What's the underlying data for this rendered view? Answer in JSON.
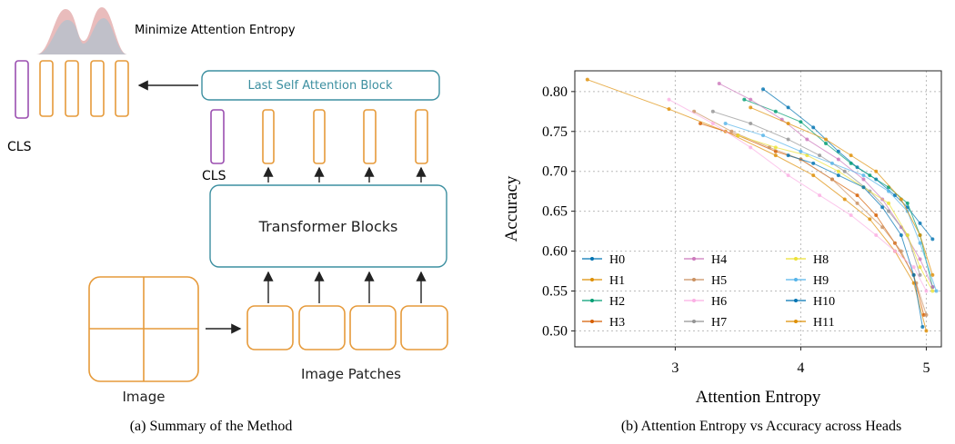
{
  "diagram": {
    "objective": "Minimize Attention Entropy",
    "last_block": "Last Self Attention Block",
    "cls_labels": [
      "CLS",
      "CLS"
    ],
    "transformer": "Transformer Blocks",
    "image": "Image",
    "patches": "Image Patches"
  },
  "captions": [
    "(a) Summary of the Method",
    "(b) Attention Entropy vs Accuracy across Heads"
  ],
  "chart_data": {
    "type": "line",
    "xlabel": "Attention Entropy",
    "ylabel": "Accuracy",
    "xlim": [
      2.2,
      5.12
    ],
    "ylim": [
      0.48,
      0.826
    ],
    "xticks": [
      3,
      4,
      5
    ],
    "yticks": [
      {
        "value": 0.5,
        "label": "0.50"
      },
      {
        "value": 0.55,
        "label": "0.55"
      },
      {
        "value": 0.6,
        "label": "0.60"
      },
      {
        "value": 0.65,
        "label": "0.65"
      },
      {
        "value": 0.7,
        "label": "0.70"
      },
      {
        "value": 0.75,
        "label": "0.75"
      },
      {
        "value": 0.8,
        "label": "0.80"
      }
    ],
    "grid": true,
    "legend": "lower left",
    "series": [
      {
        "name": "H0",
        "color": "#0173b2",
        "x": [
          3.7,
          3.9,
          4.1,
          4.3,
          4.45,
          4.6,
          4.75,
          4.85,
          4.95,
          5.05
        ],
        "values": [
          0.803,
          0.78,
          0.755,
          0.725,
          0.705,
          0.69,
          0.67,
          0.655,
          0.635,
          0.615
        ]
      },
      {
        "name": "H1",
        "color": "#de8f05",
        "x": [
          2.3,
          2.95,
          3.4,
          3.8,
          4.1,
          4.35,
          4.55,
          4.75,
          4.9,
          5.0
        ],
        "values": [
          0.815,
          0.778,
          0.75,
          0.72,
          0.695,
          0.665,
          0.64,
          0.6,
          0.56,
          0.5
        ]
      },
      {
        "name": "H2",
        "color": "#029e73",
        "x": [
          3.55,
          3.8,
          4.0,
          4.2,
          4.4,
          4.55,
          4.7,
          4.85,
          4.95,
          5.05
        ],
        "values": [
          0.79,
          0.775,
          0.762,
          0.735,
          0.71,
          0.695,
          0.68,
          0.66,
          0.62,
          0.555
        ]
      },
      {
        "name": "H3",
        "color": "#d55e00",
        "x": [
          3.2,
          3.5,
          3.8,
          4.0,
          4.25,
          4.45,
          4.6,
          4.75,
          4.9,
          4.98
        ],
        "values": [
          0.76,
          0.745,
          0.725,
          0.715,
          0.69,
          0.67,
          0.645,
          0.61,
          0.57,
          0.52
        ]
      },
      {
        "name": "H4",
        "color": "#cc78bc",
        "x": [
          3.35,
          3.6,
          3.85,
          4.05,
          4.3,
          4.5,
          4.65,
          4.8,
          4.95,
          5.05
        ],
        "values": [
          0.81,
          0.79,
          0.765,
          0.74,
          0.715,
          0.69,
          0.665,
          0.63,
          0.59,
          0.555
        ]
      },
      {
        "name": "H5",
        "color": "#ca9161",
        "x": [
          3.15,
          3.45,
          3.75,
          4.0,
          4.25,
          4.45,
          4.65,
          4.8,
          4.92,
          5.0
        ],
        "values": [
          0.775,
          0.75,
          0.73,
          0.715,
          0.69,
          0.66,
          0.63,
          0.6,
          0.56,
          0.52
        ]
      },
      {
        "name": "H6",
        "color": "#fbafe4",
        "x": [
          2.95,
          3.3,
          3.6,
          3.9,
          4.15,
          4.4,
          4.6,
          4.75,
          4.9,
          5.0
        ],
        "values": [
          0.79,
          0.76,
          0.73,
          0.695,
          0.67,
          0.645,
          0.62,
          0.6,
          0.58,
          0.55
        ]
      },
      {
        "name": "H7",
        "color": "#949494",
        "x": [
          3.3,
          3.6,
          3.9,
          4.15,
          4.35,
          4.55,
          4.7,
          4.85,
          4.95
        ],
        "values": [
          0.775,
          0.76,
          0.74,
          0.72,
          0.7,
          0.675,
          0.65,
          0.62,
          0.57
        ]
      },
      {
        "name": "H8",
        "color": "#ece133",
        "x": [
          3.5,
          3.8,
          4.05,
          4.3,
          4.5,
          4.7,
          4.85,
          4.95,
          5.05
        ],
        "values": [
          0.745,
          0.73,
          0.72,
          0.7,
          0.68,
          0.66,
          0.62,
          0.58,
          0.55
        ]
      },
      {
        "name": "H9",
        "color": "#56b4e9",
        "x": [
          3.4,
          3.7,
          4.0,
          4.25,
          4.5,
          4.7,
          4.85,
          4.95,
          5.08
        ],
        "values": [
          0.76,
          0.745,
          0.725,
          0.71,
          0.695,
          0.675,
          0.65,
          0.61,
          0.55
        ]
      },
      {
        "name": "H10",
        "color": "#0173b2",
        "x": [
          3.9,
          4.1,
          4.3,
          4.5,
          4.65,
          4.8,
          4.9,
          4.97
        ],
        "values": [
          0.72,
          0.71,
          0.695,
          0.68,
          0.655,
          0.62,
          0.57,
          0.505
        ]
      },
      {
        "name": "H11",
        "color": "#de8f05",
        "x": [
          3.6,
          3.9,
          4.2,
          4.4,
          4.6,
          4.8,
          4.95,
          5.05
        ],
        "values": [
          0.78,
          0.76,
          0.74,
          0.72,
          0.7,
          0.665,
          0.62,
          0.57
        ]
      }
    ]
  }
}
